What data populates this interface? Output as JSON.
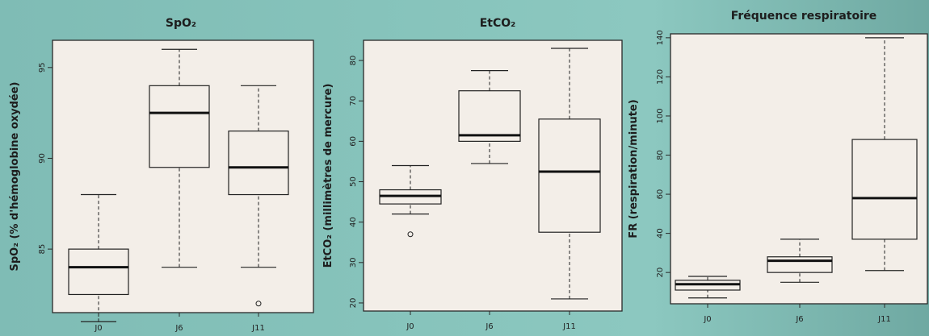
{
  "chart_data": [
    {
      "type": "box",
      "title": "SpO₂",
      "ylabel": "SpO₂ (% d'hémoglobine oxydée)",
      "categories": [
        "J0",
        "J6",
        "J11"
      ],
      "yticks": [
        85,
        90,
        95
      ],
      "ylim": [
        81.5,
        96.5
      ],
      "boxes": [
        {
          "min": 81,
          "q1": 82.5,
          "median": 84,
          "q3": 85,
          "max": 88,
          "outliers": []
        },
        {
          "min": 84,
          "q1": 89.5,
          "median": 92.5,
          "q3": 94,
          "max": 96,
          "outliers": []
        },
        {
          "min": 84,
          "q1": 88,
          "median": 89.5,
          "q3": 91.5,
          "max": 94,
          "outliers": [
            82
          ]
        }
      ]
    },
    {
      "type": "box",
      "title": "EtCO₂",
      "ylabel": "EtCO₂ (millimètres de mercure)",
      "categories": [
        "J0",
        "J6",
        "J11"
      ],
      "yticks": [
        20,
        30,
        40,
        50,
        60,
        70,
        80
      ],
      "ylim": [
        18,
        85
      ],
      "boxes": [
        {
          "min": 42,
          "q1": 44.5,
          "median": 46.5,
          "q3": 48,
          "max": 54,
          "outliers": [
            37
          ]
        },
        {
          "min": 54.5,
          "q1": 60,
          "median": 61.5,
          "q3": 72.5,
          "max": 77.5,
          "outliers": []
        },
        {
          "min": 21,
          "q1": 37.5,
          "median": 52.5,
          "q3": 65.5,
          "max": 83,
          "outliers": []
        }
      ]
    },
    {
      "type": "box",
      "title": "Fréquence respiratoire",
      "ylabel": "FR (respiration/minute)",
      "categories": [
        "J0",
        "J6",
        "J11"
      ],
      "yticks": [
        20,
        40,
        60,
        80,
        100,
        120,
        140
      ],
      "ylim": [
        4,
        142
      ],
      "boxes": [
        {
          "min": 7,
          "q1": 11,
          "median": 14,
          "q3": 16,
          "max": 18,
          "outliers": []
        },
        {
          "min": 15,
          "q1": 20,
          "median": 26,
          "q3": 28,
          "max": 37,
          "outliers": []
        },
        {
          "min": 21,
          "q1": 37,
          "median": 58,
          "q3": 88,
          "max": 140,
          "outliers": []
        }
      ]
    }
  ]
}
